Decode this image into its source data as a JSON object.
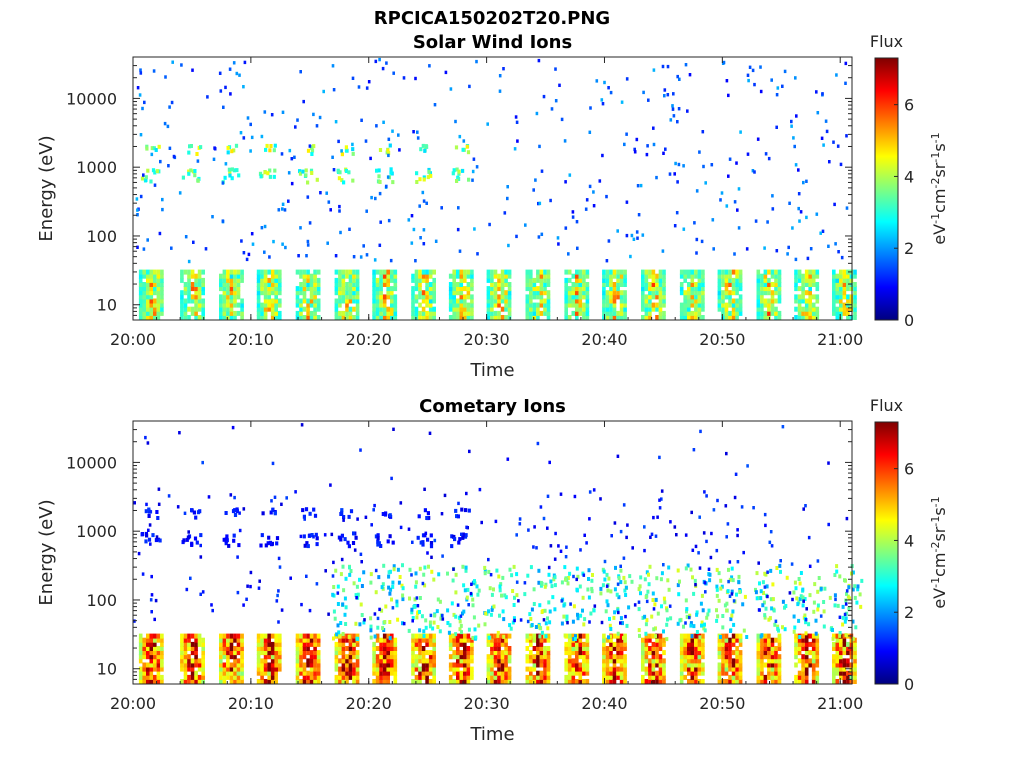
{
  "figure": {
    "suptitle": "RPCICA150202T20.PNG"
  },
  "chart_data": [
    {
      "type": "heatmap",
      "title": "Solar Wind Ions",
      "xlabel": "Time",
      "ylabel": "Energy (eV)",
      "x_ticks": [
        "20:00",
        "20:10",
        "20:20",
        "20:30",
        "20:40",
        "20:50",
        "21:00"
      ],
      "x_range": [
        "20:00",
        "21:01"
      ],
      "y_scale": "log",
      "y_ticks": [
        "10",
        "100",
        "1000",
        "10000"
      ],
      "y_range": [
        6,
        40000
      ],
      "colorbar": {
        "title": "Flux",
        "label": "eV-1cm-2sr-1s-1",
        "range": [
          0,
          7.3
        ],
        "ticks": [
          "0",
          "2",
          "4",
          "6"
        ],
        "colormap": "jet"
      },
      "sweep_times_min": [
        1.5,
        5,
        8.3,
        11.5,
        14.8,
        18.1,
        21.3,
        24.6,
        27.8,
        31,
        34.3,
        37.6,
        40.8,
        44.1,
        47.4,
        50.6,
        53.9,
        57.1,
        60.3
      ],
      "low_energy_band": {
        "energy_range_eV": [
          6,
          30
        ],
        "typical_flux": 4.5
      },
      "secondary_band": {
        "energy_eV": 700,
        "active_until_min": 28,
        "flux": 3.5
      },
      "scatter_background_flux": 1.5
    },
    {
      "type": "heatmap",
      "title": "Cometary Ions",
      "xlabel": "Time",
      "ylabel": "Energy (eV)",
      "x_ticks": [
        "20:00",
        "20:10",
        "20:20",
        "20:30",
        "20:40",
        "20:50",
        "21:00"
      ],
      "x_range": [
        "20:00",
        "21:01"
      ],
      "y_scale": "log",
      "y_ticks": [
        "10",
        "100",
        "1000",
        "10000"
      ],
      "y_range": [
        6,
        40000
      ],
      "colorbar": {
        "title": "Flux",
        "label": "eV-1cm-2sr-1s-1",
        "range": [
          0,
          7.3
        ],
        "ticks": [
          "0",
          "2",
          "4",
          "6"
        ],
        "colormap": "jet"
      },
      "sweep_times_min": [
        1.5,
        5,
        8.3,
        11.5,
        14.8,
        18.1,
        21.3,
        24.6,
        27.8,
        31,
        34.3,
        37.6,
        40.8,
        44.1,
        47.4,
        50.6,
        53.9,
        57.1,
        60.3
      ],
      "low_energy_band": {
        "energy_range_eV": [
          6,
          28
        ],
        "typical_flux": 6.5
      },
      "mid_band": {
        "energy_range_eV": [
          25,
          300
        ],
        "typical_flux": 3.2
      },
      "secondary_band": {
        "energy_eV": 700,
        "active_until_min": 28,
        "flux": 1.0
      },
      "scatter_background_flux": 1.0
    }
  ]
}
